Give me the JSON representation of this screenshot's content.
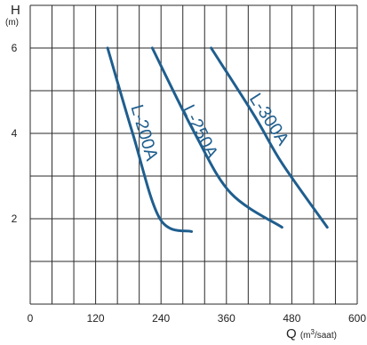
{
  "chart_data": {
    "type": "line",
    "x_axis": {
      "title": "Q",
      "unit_prefix": "(m",
      "unit_sup": "3",
      "unit_suffix": "/saat)",
      "range": [
        0,
        600
      ],
      "ticks": [
        "0",
        "120",
        "240",
        "360",
        "480",
        "600"
      ]
    },
    "y_axis": {
      "title": "H",
      "unit": "(m)",
      "range": [
        0,
        7
      ],
      "ticks": [
        "2",
        "4",
        "6"
      ]
    },
    "grid": true,
    "line_color": "#1f5e8e",
    "series": [
      {
        "name": "L-200A",
        "points": [
          [
            142,
            6
          ],
          [
            188,
            4
          ],
          [
            238,
            2
          ],
          [
            296,
            1.7
          ]
        ]
      },
      {
        "name": "L-250A",
        "points": [
          [
            224,
            6
          ],
          [
            302,
            4
          ],
          [
            368,
            2.6
          ],
          [
            462,
            1.8
          ]
        ]
      },
      {
        "name": "L-300A",
        "points": [
          [
            332,
            6
          ],
          [
            412,
            4.4
          ],
          [
            462,
            3.3
          ],
          [
            545,
            1.8
          ]
        ]
      }
    ]
  }
}
